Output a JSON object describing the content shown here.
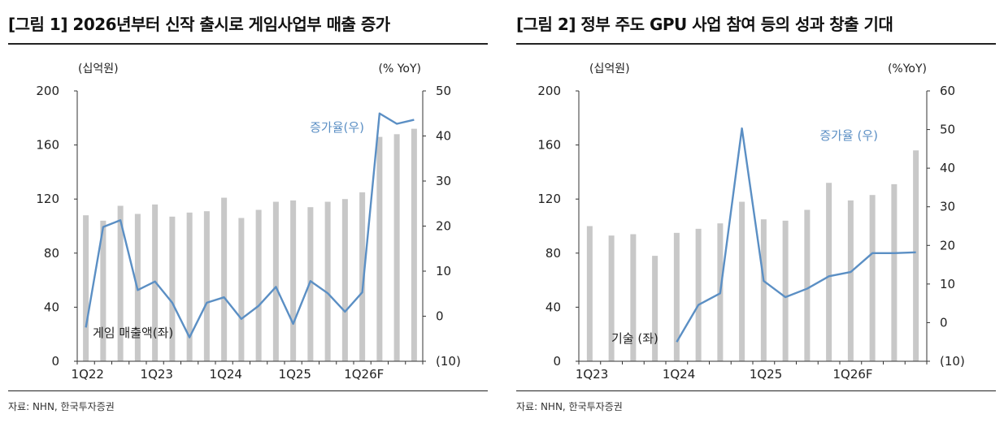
{
  "chart_data": [
    {
      "type": "bar+line",
      "title": "[그림 1] 2026년부터 신작 출시로 게임사업부 매출 증가",
      "left_unit": "(십억원)",
      "right_unit": "(% YoY)",
      "ylim_left": [
        0,
        200
      ],
      "yticks_left": [
        "0",
        "40",
        "80",
        "120",
        "160",
        "200"
      ],
      "ylim_right": [
        -10,
        50
      ],
      "yticks_right": [
        "(10)",
        "0",
        "10",
        "20",
        "30",
        "40",
        "50"
      ],
      "x_tick_labels": [
        "1Q22",
        "1Q23",
        "1Q24",
        "1Q25",
        "1Q26F"
      ],
      "x_tick_positions": [
        0,
        4,
        8,
        12,
        16
      ],
      "bar_series": {
        "name": "게임 매출액(좌)",
        "values": [
          108,
          104,
          115,
          109,
          116,
          107,
          110,
          111,
          121,
          106,
          112,
          118,
          119,
          114,
          118,
          120,
          125,
          166,
          168,
          172
        ]
      },
      "line_series": {
        "name": "증가율(우)",
        "values": [
          -2.5,
          19.8,
          21.3,
          5.8,
          7.7,
          3.0,
          -4.7,
          3.0,
          4.2,
          -0.6,
          2.3,
          6.5,
          -1.7,
          7.8,
          5.1,
          1.0,
          5.3,
          45.0,
          42.7,
          43.6
        ]
      }
    },
    {
      "type": "bar+line",
      "title": "[그림 2] 정부 주도 GPU 사업 참여 등의 성과 창출 기대",
      "left_unit": "(십억원)",
      "right_unit": "(%YoY)",
      "ylim_left": [
        0,
        200
      ],
      "yticks_left": [
        "0",
        "40",
        "80",
        "120",
        "160",
        "200"
      ],
      "ylim_right": [
        -10,
        60
      ],
      "yticks_right": [
        "(10)",
        "0",
        "10",
        "20",
        "30",
        "40",
        "50",
        "60"
      ],
      "x_tick_labels": [
        "1Q23",
        "1Q24",
        "1Q25",
        "1Q26F"
      ],
      "x_tick_positions": [
        0,
        4,
        8,
        12
      ],
      "bar_series": {
        "name": "기술 (좌)",
        "values": [
          100,
          93,
          94,
          78,
          95,
          98,
          102,
          118,
          105,
          104,
          112,
          132,
          119,
          123,
          131,
          156
        ]
      },
      "line_series": {
        "name": "증가율 (우)",
        "values": [
          null,
          null,
          null,
          null,
          -5.0,
          4.6,
          7.6,
          50.3,
          10.8,
          6.6,
          8.8,
          12.0,
          13.1,
          18.0,
          18.0,
          18.2
        ]
      }
    }
  ],
  "footer_source": "자료: NHN, 한국투자증권",
  "colors": {
    "bar": "#c8c8c8",
    "line": "#5b8fc4",
    "axis": "#333333",
    "legend_line": "#5b8fc4"
  }
}
